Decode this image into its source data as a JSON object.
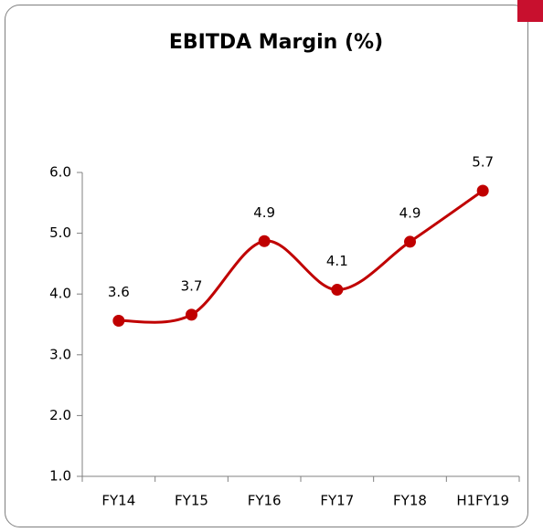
{
  "chart_data": {
    "type": "line",
    "title": "EBITDA Margin (%)",
    "categories": [
      "FY14",
      "FY15",
      "FY16",
      "FY17",
      "FY18",
      "H1FY19"
    ],
    "values": [
      3.56,
      3.66,
      4.87,
      4.07,
      4.86,
      5.7
    ],
    "value_labels": [
      "3.6",
      "3.7",
      "4.9",
      "4.1",
      "4.9",
      "5.7"
    ],
    "color": "#c00000",
    "ylim": [
      1,
      6
    ],
    "yticks": [
      {
        "value": 1,
        "label": "1.0"
      },
      {
        "value": 2,
        "label": "2.0"
      },
      {
        "value": 3,
        "label": "3.0"
      },
      {
        "value": 4,
        "label": "4.0"
      },
      {
        "value": 5,
        "label": "5.0"
      },
      {
        "value": 6,
        "label": "6.0"
      }
    ],
    "grid": false
  }
}
